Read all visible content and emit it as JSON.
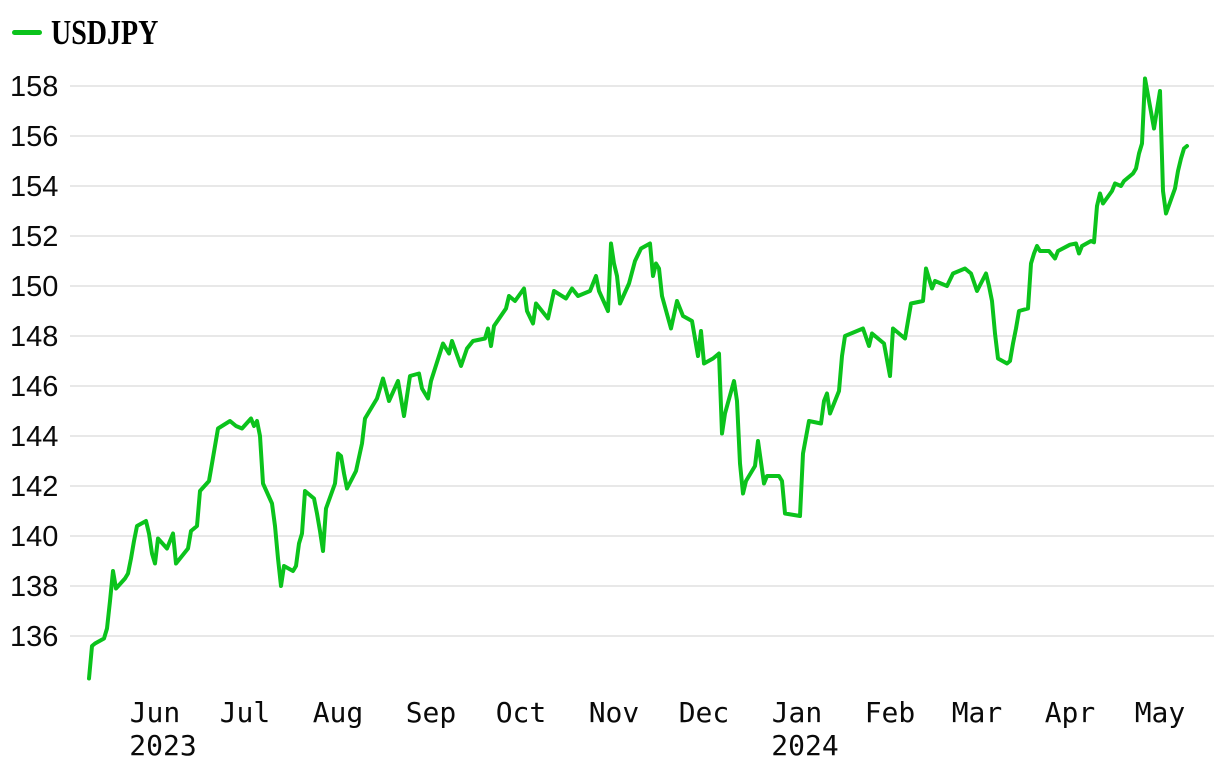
{
  "legend": {
    "label": "USDJPY"
  },
  "chart_data": {
    "type": "line",
    "title": "",
    "legend_position": "top-left",
    "grid": true,
    "colors": {
      "line": "#0bc31c",
      "grid": "#e8e8e8",
      "text": "#0a0a0a",
      "background": "#ffffff"
    },
    "x_range": [
      "2023-05-10",
      "2024-05-10"
    ],
    "ylim": [
      136,
      158
    ],
    "y_ticks": [
      136,
      138,
      140,
      142,
      144,
      146,
      148,
      150,
      152,
      154,
      156,
      158
    ],
    "x_ticks": [
      {
        "date": "2023-06-01",
        "label": "Jun"
      },
      {
        "date": "2023-07-01",
        "label": "Jul"
      },
      {
        "date": "2023-08-01",
        "label": "Aug"
      },
      {
        "date": "2023-09-01",
        "label": "Sep"
      },
      {
        "date": "2023-10-01",
        "label": "Oct"
      },
      {
        "date": "2023-11-01",
        "label": "Nov"
      },
      {
        "date": "2023-12-01",
        "label": "Dec"
      },
      {
        "date": "2024-01-01",
        "label": "Jan"
      },
      {
        "date": "2024-02-01",
        "label": "Feb"
      },
      {
        "date": "2024-03-01",
        "label": "Mar"
      },
      {
        "date": "2024-04-01",
        "label": "Apr"
      },
      {
        "date": "2024-05-01",
        "label": "May"
      }
    ],
    "year_ticks": [
      {
        "date": "2023-06-01",
        "label": "2023"
      },
      {
        "date": "2024-01-01",
        "label": "2024"
      }
    ],
    "series": [
      {
        "name": "USDJPY",
        "points": [
          [
            "2023-05-10",
            134.3
          ],
          [
            "2023-05-11",
            135.6
          ],
          [
            "2023-05-12",
            135.7
          ],
          [
            "2023-05-15",
            135.9
          ],
          [
            "2023-05-16",
            136.3
          ],
          [
            "2023-05-17",
            137.4
          ],
          [
            "2023-05-18",
            138.6
          ],
          [
            "2023-05-19",
            137.9
          ],
          [
            "2023-05-22",
            138.3
          ],
          [
            "2023-05-23",
            138.5
          ],
          [
            "2023-05-24",
            139.1
          ],
          [
            "2023-05-25",
            139.8
          ],
          [
            "2023-05-26",
            140.4
          ],
          [
            "2023-05-29",
            140.6
          ],
          [
            "2023-05-30",
            140.1
          ],
          [
            "2023-05-31",
            139.3
          ],
          [
            "2023-06-01",
            138.9
          ],
          [
            "2023-06-02",
            139.9
          ],
          [
            "2023-06-05",
            139.5
          ],
          [
            "2023-06-07",
            140.1
          ],
          [
            "2023-06-08",
            138.9
          ],
          [
            "2023-06-12",
            139.5
          ],
          [
            "2023-06-13",
            140.2
          ],
          [
            "2023-06-15",
            140.4
          ],
          [
            "2023-06-16",
            141.8
          ],
          [
            "2023-06-19",
            142.2
          ],
          [
            "2023-06-21",
            143.6
          ],
          [
            "2023-06-22",
            144.3
          ],
          [
            "2023-06-26",
            144.6
          ],
          [
            "2023-06-28",
            144.4
          ],
          [
            "2023-06-30",
            144.3
          ],
          [
            "2023-07-03",
            144.7
          ],
          [
            "2023-07-04",
            144.4
          ],
          [
            "2023-07-05",
            144.6
          ],
          [
            "2023-07-06",
            144.0
          ],
          [
            "2023-07-07",
            142.1
          ],
          [
            "2023-07-10",
            141.3
          ],
          [
            "2023-07-11",
            140.4
          ],
          [
            "2023-07-12",
            139.1
          ],
          [
            "2023-07-13",
            138.0
          ],
          [
            "2023-07-14",
            138.8
          ],
          [
            "2023-07-17",
            138.6
          ],
          [
            "2023-07-18",
            138.8
          ],
          [
            "2023-07-19",
            139.7
          ],
          [
            "2023-07-20",
            140.1
          ],
          [
            "2023-07-21",
            141.8
          ],
          [
            "2023-07-24",
            141.5
          ],
          [
            "2023-07-25",
            140.9
          ],
          [
            "2023-07-26",
            140.2
          ],
          [
            "2023-07-27",
            139.4
          ],
          [
            "2023-07-28",
            141.1
          ],
          [
            "2023-07-31",
            142.1
          ],
          [
            "2023-08-01",
            143.3
          ],
          [
            "2023-08-02",
            143.2
          ],
          [
            "2023-08-03",
            142.5
          ],
          [
            "2023-08-04",
            141.9
          ],
          [
            "2023-08-07",
            142.6
          ],
          [
            "2023-08-09",
            143.7
          ],
          [
            "2023-08-10",
            144.7
          ],
          [
            "2023-08-11",
            144.9
          ],
          [
            "2023-08-14",
            145.5
          ],
          [
            "2023-08-16",
            146.3
          ],
          [
            "2023-08-18",
            145.4
          ],
          [
            "2023-08-21",
            146.2
          ],
          [
            "2023-08-23",
            144.8
          ],
          [
            "2023-08-25",
            146.4
          ],
          [
            "2023-08-28",
            146.5
          ],
          [
            "2023-08-29",
            145.9
          ],
          [
            "2023-08-31",
            145.5
          ],
          [
            "2023-09-01",
            146.2
          ],
          [
            "2023-09-05",
            147.7
          ],
          [
            "2023-09-07",
            147.3
          ],
          [
            "2023-09-08",
            147.8
          ],
          [
            "2023-09-11",
            146.8
          ],
          [
            "2023-09-13",
            147.5
          ],
          [
            "2023-09-15",
            147.8
          ],
          [
            "2023-09-19",
            147.9
          ],
          [
            "2023-09-20",
            148.3
          ],
          [
            "2023-09-21",
            147.6
          ],
          [
            "2023-09-22",
            148.4
          ],
          [
            "2023-09-26",
            149.1
          ],
          [
            "2023-09-27",
            149.6
          ],
          [
            "2023-09-29",
            149.4
          ],
          [
            "2023-10-02",
            149.9
          ],
          [
            "2023-10-03",
            149.0
          ],
          [
            "2023-10-05",
            148.5
          ],
          [
            "2023-10-06",
            149.3
          ],
          [
            "2023-10-10",
            148.7
          ],
          [
            "2023-10-12",
            149.8
          ],
          [
            "2023-10-16",
            149.5
          ],
          [
            "2023-10-18",
            149.9
          ],
          [
            "2023-10-20",
            149.6
          ],
          [
            "2023-10-24",
            149.8
          ],
          [
            "2023-10-26",
            150.4
          ],
          [
            "2023-10-27",
            149.8
          ],
          [
            "2023-10-30",
            149.0
          ],
          [
            "2023-10-31",
            151.7
          ],
          [
            "2023-11-01",
            150.9
          ],
          [
            "2023-11-02",
            150.4
          ],
          [
            "2023-11-03",
            149.3
          ],
          [
            "2023-11-06",
            150.1
          ],
          [
            "2023-11-08",
            151.0
          ],
          [
            "2023-11-10",
            151.5
          ],
          [
            "2023-11-13",
            151.7
          ],
          [
            "2023-11-14",
            150.4
          ],
          [
            "2023-11-15",
            150.9
          ],
          [
            "2023-11-16",
            150.7
          ],
          [
            "2023-11-17",
            149.6
          ],
          [
            "2023-11-20",
            148.3
          ],
          [
            "2023-11-22",
            149.4
          ],
          [
            "2023-11-24",
            148.8
          ],
          [
            "2023-11-27",
            148.6
          ],
          [
            "2023-11-29",
            147.2
          ],
          [
            "2023-11-30",
            148.2
          ],
          [
            "2023-12-01",
            146.9
          ],
          [
            "2023-12-04",
            147.1
          ],
          [
            "2023-12-06",
            147.3
          ],
          [
            "2023-12-07",
            144.1
          ],
          [
            "2023-12-08",
            144.9
          ],
          [
            "2023-12-11",
            146.2
          ],
          [
            "2023-12-12",
            145.4
          ],
          [
            "2023-12-13",
            142.9
          ],
          [
            "2023-12-14",
            141.7
          ],
          [
            "2023-12-15",
            142.2
          ],
          [
            "2023-12-18",
            142.8
          ],
          [
            "2023-12-19",
            143.8
          ],
          [
            "2023-12-21",
            142.1
          ],
          [
            "2023-12-22",
            142.4
          ],
          [
            "2023-12-26",
            142.4
          ],
          [
            "2023-12-27",
            142.2
          ],
          [
            "2023-12-28",
            140.9
          ],
          [
            "2024-01-02",
            140.8
          ],
          [
            "2024-01-03",
            143.3
          ],
          [
            "2024-01-05",
            144.6
          ],
          [
            "2024-01-09",
            144.5
          ],
          [
            "2024-01-10",
            145.4
          ],
          [
            "2024-01-11",
            145.7
          ],
          [
            "2024-01-12",
            144.9
          ],
          [
            "2024-01-15",
            145.8
          ],
          [
            "2024-01-16",
            147.2
          ],
          [
            "2024-01-17",
            148.0
          ],
          [
            "2024-01-19",
            148.1
          ],
          [
            "2024-01-23",
            148.3
          ],
          [
            "2024-01-25",
            147.6
          ],
          [
            "2024-01-26",
            148.1
          ],
          [
            "2024-01-30",
            147.7
          ],
          [
            "2024-02-01",
            146.4
          ],
          [
            "2024-02-02",
            148.3
          ],
          [
            "2024-02-06",
            147.9
          ],
          [
            "2024-02-08",
            149.3
          ],
          [
            "2024-02-12",
            149.4
          ],
          [
            "2024-02-13",
            150.7
          ],
          [
            "2024-02-15",
            149.9
          ],
          [
            "2024-02-16",
            150.2
          ],
          [
            "2024-02-20",
            150.0
          ],
          [
            "2024-02-22",
            150.5
          ],
          [
            "2024-02-26",
            150.7
          ],
          [
            "2024-02-28",
            150.5
          ],
          [
            "2024-03-01",
            149.8
          ],
          [
            "2024-03-04",
            150.5
          ],
          [
            "2024-03-05",
            150.0
          ],
          [
            "2024-03-06",
            149.4
          ],
          [
            "2024-03-07",
            148.1
          ],
          [
            "2024-03-08",
            147.1
          ],
          [
            "2024-03-11",
            146.9
          ],
          [
            "2024-03-12",
            147.0
          ],
          [
            "2024-03-13",
            147.7
          ],
          [
            "2024-03-14",
            148.3
          ],
          [
            "2024-03-15",
            149.0
          ],
          [
            "2024-03-18",
            149.1
          ],
          [
            "2024-03-19",
            150.9
          ],
          [
            "2024-03-20",
            151.3
          ],
          [
            "2024-03-21",
            151.6
          ],
          [
            "2024-03-22",
            151.4
          ],
          [
            "2024-03-25",
            151.4
          ],
          [
            "2024-03-27",
            151.1
          ],
          [
            "2024-03-28",
            151.4
          ],
          [
            "2024-04-01",
            151.65
          ],
          [
            "2024-04-03",
            151.7
          ],
          [
            "2024-04-04",
            151.3
          ],
          [
            "2024-04-05",
            151.6
          ],
          [
            "2024-04-08",
            151.8
          ],
          [
            "2024-04-09",
            151.75
          ],
          [
            "2024-04-10",
            153.2
          ],
          [
            "2024-04-11",
            153.7
          ],
          [
            "2024-04-12",
            153.3
          ],
          [
            "2024-04-15",
            153.8
          ],
          [
            "2024-04-16",
            154.1
          ],
          [
            "2024-04-18",
            154.0
          ],
          [
            "2024-04-19",
            154.2
          ],
          [
            "2024-04-22",
            154.5
          ],
          [
            "2024-04-23",
            154.7
          ],
          [
            "2024-04-24",
            155.3
          ],
          [
            "2024-04-25",
            155.7
          ],
          [
            "2024-04-26",
            158.3
          ],
          [
            "2024-04-29",
            156.3
          ],
          [
            "2024-05-01",
            157.8
          ],
          [
            "2024-05-02",
            153.8
          ],
          [
            "2024-05-03",
            152.9
          ],
          [
            "2024-05-06",
            153.9
          ],
          [
            "2024-05-07",
            154.6
          ],
          [
            "2024-05-08",
            155.1
          ],
          [
            "2024-05-09",
            155.5
          ],
          [
            "2024-05-10",
            155.6
          ]
        ]
      }
    ]
  }
}
